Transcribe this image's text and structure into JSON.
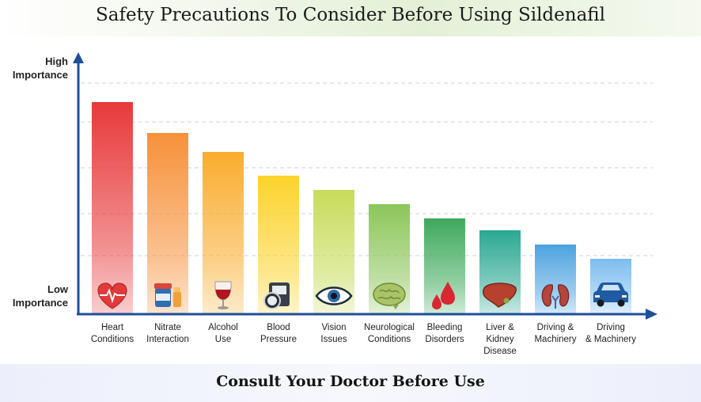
{
  "title": "Safety Precautions To Consider Before Using Sildenafil",
  "footer": "Consult Your Doctor Before Use",
  "y_axis": {
    "top_label_1": "High",
    "top_label_2": "Importance",
    "bottom_label_1": "Low",
    "bottom_label_2": "Importance"
  },
  "chart_data": {
    "type": "bar",
    "title": "Safety Precautions To Consider Before Using Sildenafil",
    "xlabel": "",
    "ylabel": "",
    "ylim": [
      0,
      100
    ],
    "grid": true,
    "categories": [
      "Heart Conditions",
      "Nitrate Interaction",
      "Alcohol Use",
      "Blood Pressure",
      "Vision Issues",
      "Neurological Conditions",
      "Bleeding Disorders",
      "Liver & Kidney Disease",
      "Driving & Machinery",
      "Driving & Machinery"
    ],
    "label_lines": [
      [
        "Heart",
        "Conditions"
      ],
      [
        "Nitrate",
        "Interaction"
      ],
      [
        "Alcohol",
        "Use"
      ],
      [
        "Blood",
        "Pressure"
      ],
      [
        "Vision",
        "Issues"
      ],
      [
        "Neurological",
        "Conditions"
      ],
      [
        "Bleeding",
        "Disorders"
      ],
      [
        "Liver &",
        "Kidney",
        "Disease"
      ],
      [
        "Driving &",
        "Machinery"
      ],
      [
        "Driving",
        "& Machinery"
      ]
    ],
    "values": [
      89,
      76,
      68,
      58,
      52,
      46,
      40,
      35,
      29,
      23
    ],
    "colors": [
      "#e8393a",
      "#f7913a",
      "#f9ad2e",
      "#fcd32b",
      "#c8dc5a",
      "#8cc65a",
      "#3eaa5c",
      "#2aa892",
      "#4da3e0",
      "#7dbdf0"
    ],
    "icons": [
      "heart-icon",
      "pill-bottle-icon",
      "wine-glass-icon",
      "blood-pressure-monitor-icon",
      "eye-icon",
      "brain-icon",
      "blood-drops-icon",
      "liver-icon",
      "kidneys-icon",
      "car-icon"
    ]
  }
}
